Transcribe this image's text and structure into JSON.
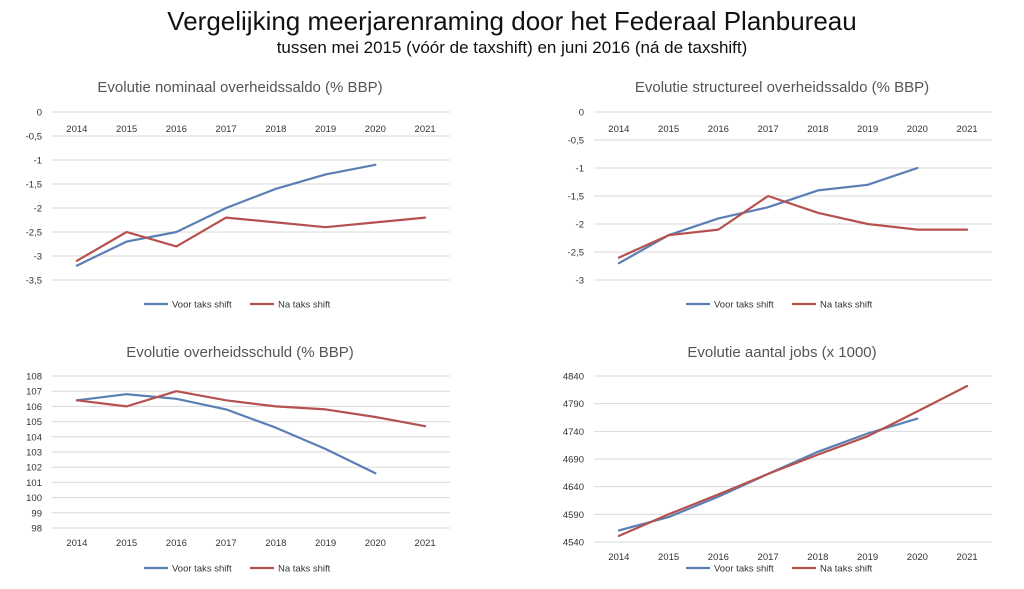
{
  "header": {
    "title": "Vergelijking meerjarenraming door het Federaal Planbureau",
    "subtitle": "tussen mei 2015 (vóór de taxshift) en juni 2016 (ná de taxshift)"
  },
  "colors": {
    "voor": "#5b7fb5",
    "na": "#b5514f"
  },
  "chart_data": [
    {
      "type": "line",
      "title": "Evolutie nominaal overheidssaldo (% BBP)",
      "categories": [
        "2014",
        "2015",
        "2016",
        "2017",
        "2018",
        "2019",
        "2020",
        "2021"
      ],
      "y_ticks": [
        "0",
        "-0,5",
        "-1",
        "-1,5",
        "-2",
        "-2,5",
        "-3",
        "-3,5"
      ],
      "ylim": [
        -3.5,
        0
      ],
      "x_axis_position": "top",
      "grid": true,
      "legend": "bottom",
      "series": [
        {
          "name": "Voor taks shift",
          "values": [
            -3.2,
            -2.7,
            -2.5,
            -2.0,
            -1.6,
            -1.3,
            -1.1,
            null
          ]
        },
        {
          "name": "Na taks shift",
          "values": [
            -3.1,
            -2.5,
            -2.8,
            -2.2,
            -2.3,
            -2.4,
            -2.3,
            -2.2
          ]
        }
      ]
    },
    {
      "type": "line",
      "title": "Evolutie structureel overheidssaldo (% BBP)",
      "categories": [
        "2014",
        "2015",
        "2016",
        "2017",
        "2018",
        "2019",
        "2020",
        "2021"
      ],
      "y_ticks": [
        "0",
        "-0,5",
        "-1",
        "-1,5",
        "-2",
        "-2,5",
        "-3"
      ],
      "ylim": [
        -3,
        0
      ],
      "x_axis_position": "top",
      "grid": true,
      "legend": "bottom",
      "series": [
        {
          "name": "Voor taks shift",
          "values": [
            -2.7,
            -2.2,
            -1.9,
            -1.7,
            -1.4,
            -1.3,
            -1.0,
            null
          ]
        },
        {
          "name": "Na taks shift",
          "values": [
            -2.6,
            -2.2,
            -2.1,
            -1.5,
            -1.8,
            -2.0,
            -2.1,
            -2.1
          ]
        }
      ]
    },
    {
      "type": "line",
      "title": "Evolutie overheidsschuld (% BBP)",
      "categories": [
        "2014",
        "2015",
        "2016",
        "2017",
        "2018",
        "2019",
        "2020",
        "2021"
      ],
      "y_ticks": [
        "98",
        "99",
        "100",
        "101",
        "102",
        "103",
        "104",
        "105",
        "106",
        "107",
        "108"
      ],
      "ylim": [
        98,
        108
      ],
      "x_axis_position": "bottom",
      "grid": true,
      "legend": "bottom",
      "series": [
        {
          "name": "Voor taks shift",
          "values": [
            106.4,
            106.8,
            106.5,
            105.8,
            104.6,
            103.2,
            101.6,
            null
          ]
        },
        {
          "name": "Na taks shift",
          "values": [
            106.4,
            106.0,
            107.0,
            106.4,
            106.0,
            105.8,
            105.3,
            104.7
          ]
        }
      ]
    },
    {
      "type": "line",
      "title": "Evolutie aantal jobs (x 1000)",
      "categories": [
        "2014",
        "2015",
        "2016",
        "2017",
        "2018",
        "2019",
        "2020",
        "2021"
      ],
      "y_ticks": [
        "4540",
        "4590",
        "4640",
        "4690",
        "4740",
        "4790",
        "4840"
      ],
      "ylim": [
        4540,
        4840
      ],
      "x_axis_position": "bottom",
      "grid": true,
      "legend": "bottom",
      "series": [
        {
          "name": "Voor taks shift",
          "values": [
            4561,
            4585,
            4622,
            4663,
            4703,
            4736,
            4763,
            null
          ]
        },
        {
          "name": "Na taks shift",
          "values": [
            4551,
            4590,
            4626,
            4663,
            4698,
            4731,
            4776,
            4822
          ]
        }
      ]
    }
  ]
}
